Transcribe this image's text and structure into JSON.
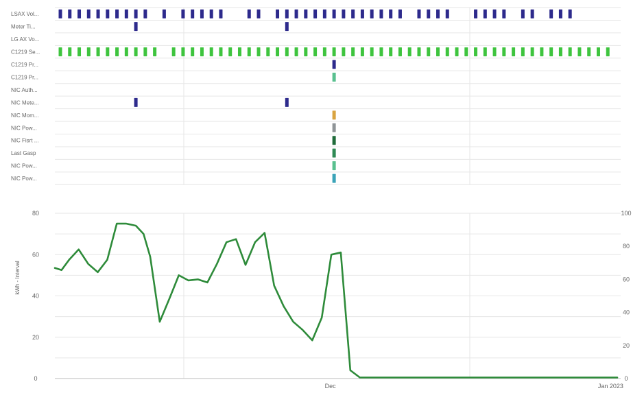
{
  "colors": {
    "navy": "#2d2a8c",
    "green": "#3ec43e",
    "line": "#2e8b3a",
    "grid": "#e6e6e6",
    "gold": "#d9a441",
    "gray": "#8f9497",
    "darkgreen": "#1f6b3a",
    "mediumgreen": "#2f8a55",
    "lightgreen": "#59c08f",
    "teal": "#3aa3b8"
  },
  "chart_data": [
    {
      "type": "event-timeline",
      "rows": [
        "LSAX Vol...",
        "Meter Ti...",
        "LG AX Vo...",
        "C1219 Se...",
        "C1219 Pr...",
        "C1219 Pr...",
        "NIC Auth...",
        "NIC Mete...",
        "NIC Mom...",
        "NIC Pow...",
        "NIC Fisrt ...",
        "Last Gasp",
        "NIC Pow...",
        "NIC Pow..."
      ],
      "row_colors": [
        "navy",
        "navy",
        "navy",
        "green",
        "navy",
        "lightgreen",
        "navy",
        "navy",
        "gold",
        "gray",
        "darkgreen",
        "mediumgreen",
        "lightgreen",
        "teal"
      ],
      "events": [
        {
          "row": 0,
          "x": [
            0,
            1,
            2,
            3,
            4,
            5,
            6,
            7,
            8,
            9,
            11,
            13,
            14,
            15,
            16,
            17,
            20,
            21,
            23,
            24,
            25,
            26,
            27,
            28,
            29,
            30,
            31,
            32,
            33,
            34,
            35,
            36,
            38,
            39,
            40,
            41,
            44,
            45,
            46,
            47,
            49,
            50,
            52,
            53,
            54
          ]
        },
        {
          "row": 1,
          "x": [
            8,
            24
          ]
        },
        {
          "row": 3,
          "x": [
            0,
            1,
            2,
            3,
            4,
            5,
            6,
            7,
            8,
            9,
            10,
            12,
            13,
            14,
            15,
            16,
            17,
            18,
            19,
            20,
            21,
            22,
            23,
            24,
            25,
            26,
            27,
            28,
            29,
            30,
            31,
            32,
            33,
            34,
            35,
            36,
            37,
            38,
            39,
            40,
            41,
            42,
            43,
            44,
            45,
            46,
            47,
            48,
            49,
            50,
            51,
            52,
            53,
            54,
            55,
            56,
            57,
            58
          ]
        },
        {
          "row": 4,
          "x": [
            29
          ]
        },
        {
          "row": 5,
          "x": [
            29
          ]
        },
        {
          "row": 7,
          "x": [
            8,
            24
          ]
        },
        {
          "row": 8,
          "x": [
            29
          ]
        },
        {
          "row": 9,
          "x": [
            29
          ]
        },
        {
          "row": 10,
          "x": [
            29
          ]
        },
        {
          "row": 11,
          "x": [
            29
          ]
        },
        {
          "row": 12,
          "x": [
            29
          ]
        },
        {
          "row": 13,
          "x": [
            29
          ]
        }
      ],
      "xlim": [
        0,
        59
      ]
    },
    {
      "type": "line",
      "ylabel": "kWh - Interval",
      "ylim": [
        0,
        80
      ],
      "yticks": [
        0,
        20,
        40,
        60,
        80
      ],
      "y2ticks": [
        0,
        20,
        40,
        60,
        80,
        100
      ],
      "xtick_labels": [
        {
          "x": 28.6,
          "label": "Dec"
        },
        {
          "x": 58.3,
          "label": "Jan 2023"
        }
      ],
      "series": [
        {
          "x": [
            0,
            0.7,
            1.5,
            2.5,
            3.5,
            4.5,
            5.5,
            6.5,
            7.5,
            8.5,
            9.3,
            10,
            11,
            12,
            13,
            14,
            15,
            16,
            17,
            18,
            19,
            20,
            21,
            22,
            23,
            24,
            25,
            26,
            27,
            28,
            29,
            30,
            31,
            32,
            33,
            34,
            35,
            36,
            37,
            38,
            39,
            40,
            41,
            42,
            43,
            44,
            45,
            46,
            47,
            48,
            49,
            50,
            51,
            52,
            53,
            54,
            55,
            56,
            57,
            58,
            59
          ],
          "y": [
            53.5,
            52.5,
            57.5,
            62.5,
            55.5,
            51.5,
            57.5,
            75,
            75,
            74,
            70,
            59,
            27.5,
            38.5,
            50,
            47.5,
            48,
            46.5,
            55.5,
            66,
            67.5,
            55,
            66,
            70.5,
            45,
            35,
            27.5,
            23.5,
            18.5,
            29.5,
            60,
            61,
            4,
            0.5,
            0.5,
            0.5,
            0.5,
            0.5,
            0.5,
            0.5,
            0.5,
            0.5,
            0.5,
            0.5,
            0.5,
            0.5,
            0.5,
            0.5,
            0.5,
            0.5,
            0.5,
            0.5,
            0.5,
            0.5,
            0.5,
            0.5,
            0.5,
            0.5,
            0.5,
            0.5,
            0.5
          ]
        }
      ]
    }
  ]
}
